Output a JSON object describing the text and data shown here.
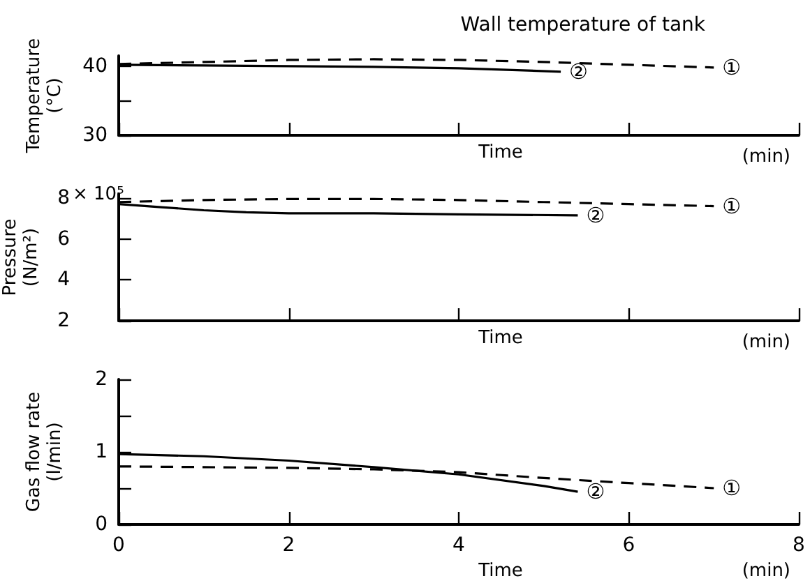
{
  "chart_data": [
    {
      "type": "line",
      "title": "Wall temperature of tank",
      "xlabel": "Time",
      "ylabel": "Temperature\n(°C)",
      "annotations": [
        "(min)"
      ],
      "xlim": [
        0,
        8
      ],
      "xticks": [
        {
          "value": 0,
          "label": null
        },
        {
          "value": 2,
          "label": null
        },
        {
          "value": 4,
          "label": null
        },
        {
          "value": 6,
          "label": null
        },
        {
          "value": 8,
          "label": null
        }
      ],
      "ylim": [
        30,
        41.5
      ],
      "yticks": [
        30,
        {
          "value": 35,
          "label": null
        },
        40
      ],
      "tick_labels": "y",
      "marker": "none",
      "grid": false,
      "legend": false,
      "series": [
        {
          "name": "①",
          "color": "#000000",
          "line_style": "dashed",
          "x": [
            0,
            1,
            2,
            3,
            4,
            5,
            6,
            7
          ],
          "values": [
            40.3,
            40.6,
            40.9,
            41,
            40.9,
            40.6,
            40.2,
            39.8
          ]
        },
        {
          "name": "②",
          "color": "#000000",
          "line_style": "solid",
          "x": [
            0,
            1,
            2,
            3,
            4,
            5.2
          ],
          "values": [
            40.2,
            40.1,
            40,
            39.9,
            39.7,
            39.2
          ]
        }
      ]
    },
    {
      "type": "line",
      "xlabel": "Time",
      "ylabel": "Pressure\n(N/m²)",
      "annotations": [
        "× 10⁵",
        "(min)"
      ],
      "xlim": [
        0,
        8
      ],
      "xticks": [
        {
          "value": 0,
          "label": null
        },
        {
          "value": 2,
          "label": null
        },
        {
          "value": 4,
          "label": null
        },
        {
          "value": 6,
          "label": null
        },
        {
          "value": 8,
          "label": null
        }
      ],
      "ylim": [
        2,
        8.2
      ],
      "yticks": [
        2,
        4,
        6,
        8
      ],
      "tick_labels": "y",
      "marker": "none",
      "grid": false,
      "legend": false,
      "series": [
        {
          "name": "①",
          "color": "#000000",
          "line_style": "dashed",
          "x": [
            0,
            1,
            2,
            3,
            4,
            5,
            6,
            7
          ],
          "values": [
            7.8,
            7.9,
            7.95,
            7.95,
            7.9,
            7.8,
            7.7,
            7.6
          ]
        },
        {
          "name": "②",
          "color": "#000000",
          "line_style": "solid",
          "x": [
            0,
            0.5,
            1,
            1.5,
            2,
            3,
            4,
            5.4
          ],
          "values": [
            7.7,
            7.55,
            7.4,
            7.3,
            7.25,
            7.25,
            7.2,
            7.15
          ]
        }
      ]
    },
    {
      "type": "line",
      "xlabel": "Time",
      "ylabel": "Gas flow rate\n(l/min)",
      "annotations": [
        "(min)"
      ],
      "xlim": [
        0,
        8
      ],
      "xticks": [
        0,
        2,
        4,
        6,
        8
      ],
      "ylim": [
        0,
        2
      ],
      "yticks": [
        0,
        {
          "value": 0.5,
          "label": null
        },
        1,
        {
          "value": 1.5,
          "label": null
        },
        2
      ],
      "marker": "none",
      "grid": false,
      "legend": false,
      "series": [
        {
          "name": "①",
          "color": "#000000",
          "line_style": "dashed",
          "x": [
            0,
            1,
            2,
            3,
            4,
            5,
            6,
            7
          ],
          "values": [
            0.8,
            0.79,
            0.78,
            0.76,
            0.72,
            0.64,
            0.57,
            0.5
          ]
        },
        {
          "name": "②",
          "color": "#000000",
          "line_style": "solid",
          "x": [
            0,
            1,
            2,
            3,
            4,
            5,
            5.4
          ],
          "values": [
            0.97,
            0.94,
            0.88,
            0.79,
            0.69,
            0.53,
            0.45
          ]
        }
      ]
    }
  ]
}
